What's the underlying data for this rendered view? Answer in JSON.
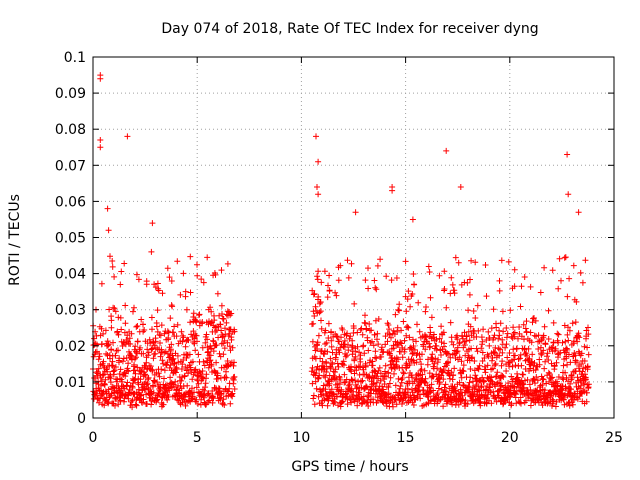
{
  "chart_data": {
    "type": "scatter",
    "title": "Day 074 of 2018, Rate Of TEC Index for receiver dyng",
    "xlabel": "GPS time / hours",
    "ylabel": "ROTI / TECUs",
    "xlim": [
      0,
      25
    ],
    "ylim": [
      0,
      0.1
    ],
    "xticks": [
      0,
      5,
      10,
      15,
      20,
      25
    ],
    "xtick_labels": [
      "0",
      "5",
      "10",
      "15",
      "20",
      "25"
    ],
    "yticks": [
      0,
      0.01,
      0.02,
      0.03,
      0.04,
      0.05,
      0.06,
      0.07,
      0.08,
      0.09,
      0.1
    ],
    "ytick_labels": [
      "0",
      "0.01",
      "0.02",
      "0.03",
      "0.04",
      "0.05",
      "0.06",
      "0.07",
      "0.08",
      "0.09",
      "0.1"
    ],
    "grid": true,
    "marker": "+",
    "marker_color": "#ff0000",
    "series": [
      {
        "name": "ROTI",
        "segments": [
          {
            "x_start": 0.0,
            "x_end": 6.8
          },
          {
            "x_start": 10.5,
            "x_end": 23.8
          }
        ],
        "typical_range": [
          0.005,
          0.025
        ],
        "outliers": [
          {
            "x": 0.35,
            "y": 0.095
          },
          {
            "x": 0.35,
            "y": 0.094
          },
          {
            "x": 0.35,
            "y": 0.077
          },
          {
            "x": 0.35,
            "y": 0.075
          },
          {
            "x": 1.65,
            "y": 0.078
          },
          {
            "x": 2.85,
            "y": 0.054
          },
          {
            "x": 2.8,
            "y": 0.046
          },
          {
            "x": 0.7,
            "y": 0.058
          },
          {
            "x": 0.75,
            "y": 0.052
          },
          {
            "x": 10.7,
            "y": 0.078
          },
          {
            "x": 10.8,
            "y": 0.071
          },
          {
            "x": 10.75,
            "y": 0.064
          },
          {
            "x": 10.8,
            "y": 0.062
          },
          {
            "x": 12.6,
            "y": 0.057
          },
          {
            "x": 14.35,
            "y": 0.064
          },
          {
            "x": 14.35,
            "y": 0.063
          },
          {
            "x": 15.35,
            "y": 0.055
          },
          {
            "x": 16.95,
            "y": 0.074
          },
          {
            "x": 17.65,
            "y": 0.064
          },
          {
            "x": 22.75,
            "y": 0.073
          },
          {
            "x": 22.8,
            "y": 0.062
          },
          {
            "x": 23.3,
            "y": 0.057
          }
        ]
      }
    ]
  }
}
